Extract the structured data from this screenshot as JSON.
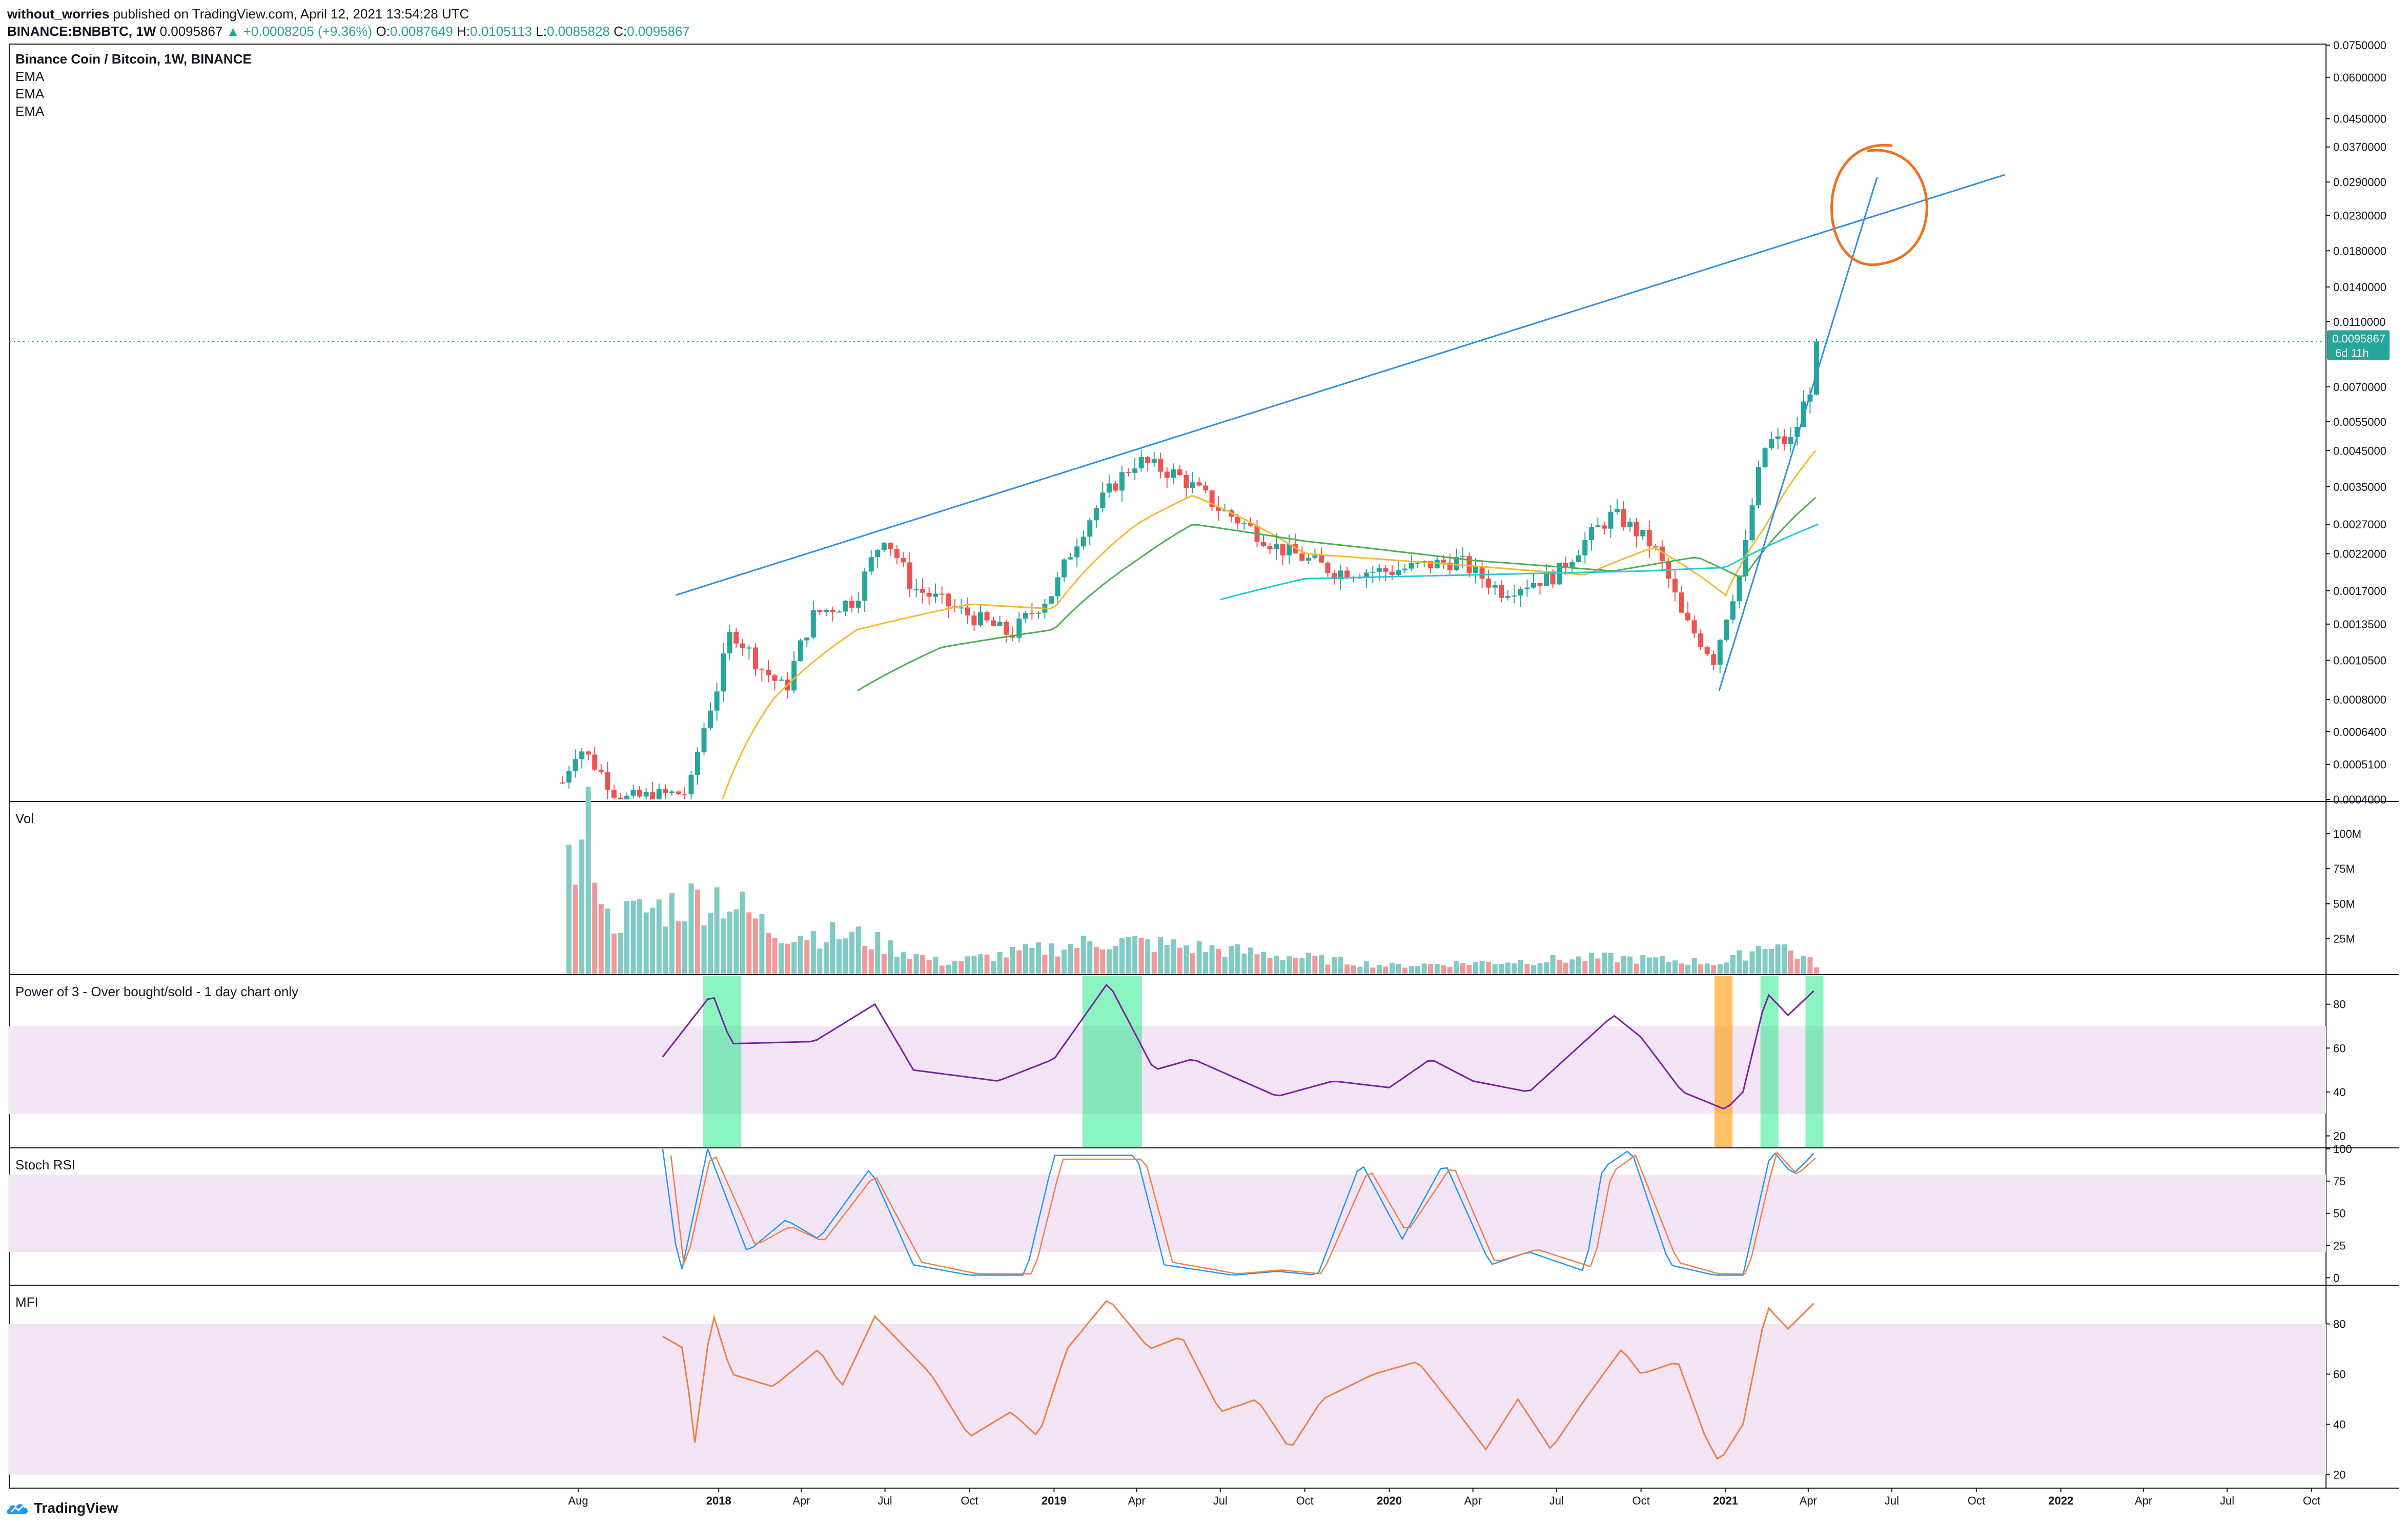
{
  "header": {
    "author": "without_worries",
    "published_text": "published on TradingView.com, April 12, 2021 13:54:28 UTC",
    "symbol": "BINANCE:BNBBTC, 1W",
    "last": "0.0095867",
    "change": "▲ +0.0008205 (+9.36%)",
    "o_label": "O:",
    "o_value": "0.0087649",
    "h_label": "H:",
    "h_value": "0.0105113",
    "l_label": "L:",
    "l_value": "0.0085828",
    "c_label": "C:",
    "c_value": "0.0095867"
  },
  "main_pane": {
    "title": "Binance Coin / Bitcoin, 1W, BINANCE",
    "legend": [
      "EMA",
      "EMA",
      "EMA"
    ],
    "price_tag": "0.0095867",
    "countdown": "6d 11h",
    "y_ticks": [
      "0.0750000",
      "0.0600000",
      "0.0450000",
      "0.0370000",
      "0.0290000",
      "0.0230000",
      "0.0180000",
      "0.0140000",
      "0.0110000",
      "0.0070000",
      "0.0055000",
      "0.0045000",
      "0.0035000",
      "0.0027000",
      "0.0022000",
      "0.0017000",
      "0.0013500",
      "0.0010500",
      "0.0008000",
      "0.0006400",
      "0.0005100",
      "0.0004000"
    ]
  },
  "vol_pane": {
    "title": "Vol",
    "y_ticks": [
      "100M",
      "75M",
      "50M",
      "25M"
    ]
  },
  "power_pane": {
    "title": "Power of 3 - Over bought/sold - 1 day chart only",
    "y_ticks": [
      "80",
      "60",
      "40",
      "20"
    ]
  },
  "stoch_pane": {
    "title": "Stoch RSI",
    "y_ticks": [
      "100",
      "75",
      "50",
      "25",
      "0"
    ]
  },
  "mfi_pane": {
    "title": "MFI",
    "y_ticks": [
      "80",
      "60",
      "40",
      "20"
    ]
  },
  "x_axis": {
    "labels": [
      "Aug",
      "2018",
      "Apr",
      "Jul",
      "Oct",
      "2019",
      "Apr",
      "Jul",
      "Oct",
      "2020",
      "Apr",
      "Jul",
      "Oct",
      "2021",
      "Apr",
      "Jul",
      "Oct",
      "2022",
      "Apr",
      "Jul",
      "Oct"
    ],
    "year_labels": [
      "2018",
      "2019",
      "2020",
      "2021",
      "2022"
    ]
  },
  "footer": {
    "brand": "TradingView"
  },
  "colors": {
    "up": "#26a69a",
    "down": "#ef5350",
    "ema_fast": "#f5b82e",
    "ema_mid": "#4caf50",
    "ema_slow": "#26c6da",
    "trendline": "#2f8fe0",
    "circle": "#f07020",
    "power_line": "#7b1fa2",
    "band": "#f3e5f5",
    "stoch_k": "#2196f3",
    "stoch_d": "#f57c44",
    "mfi": "#f57c44",
    "ob_green": "#00e676",
    "os_orange": "#ff9800"
  },
  "chart_data": [
    {
      "type": "candlestick",
      "title": "Binance Coin / Bitcoin, 1W, BINANCE",
      "y_scale": "log",
      "ylim": [
        0.0004,
        0.075
      ],
      "x_range": [
        "2017-07-01",
        "2022-11-01"
      ],
      "last_price": 0.0095867,
      "ohlc_anchors": [
        {
          "date": "2017-07-15",
          "close": 0.00045
        },
        {
          "date": "2017-08-01",
          "close": 0.00058
        },
        {
          "date": "2017-09-15",
          "close": 0.0004
        },
        {
          "date": "2017-11-30",
          "close": 0.00042
        },
        {
          "date": "2018-01-01",
          "close": 0.0009
        },
        {
          "date": "2018-01-15",
          "close": 0.0013
        },
        {
          "date": "2018-02-15",
          "close": 0.001
        },
        {
          "date": "2018-03-15",
          "close": 0.00085
        },
        {
          "date": "2018-04-15",
          "close": 0.00145
        },
        {
          "date": "2018-05-30",
          "close": 0.0016
        },
        {
          "date": "2018-06-30",
          "close": 0.0025
        },
        {
          "date": "2018-07-30",
          "close": 0.00175
        },
        {
          "date": "2018-09-15",
          "close": 0.0015
        },
        {
          "date": "2018-11-15",
          "close": 0.00125
        },
        {
          "date": "2019-01-01",
          "close": 0.0017
        },
        {
          "date": "2019-02-15",
          "close": 0.003
        },
        {
          "date": "2019-04-01",
          "close": 0.0042
        },
        {
          "date": "2019-05-15",
          "close": 0.0038
        },
        {
          "date": "2019-06-30",
          "close": 0.003
        },
        {
          "date": "2019-09-01",
          "close": 0.0023
        },
        {
          "date": "2019-11-01",
          "close": 0.00195
        },
        {
          "date": "2020-01-01",
          "close": 0.00195
        },
        {
          "date": "2020-03-15",
          "close": 0.0021
        },
        {
          "date": "2020-05-01",
          "close": 0.0017
        },
        {
          "date": "2020-07-01",
          "close": 0.0019
        },
        {
          "date": "2020-09-01",
          "close": 0.0029
        },
        {
          "date": "2020-10-15",
          "close": 0.0023
        },
        {
          "date": "2020-11-15",
          "close": 0.0014
        },
        {
          "date": "2020-12-20",
          "close": 0.00105
        },
        {
          "date": "2021-01-20",
          "close": 0.002
        },
        {
          "date": "2021-02-15",
          "close": 0.0048
        },
        {
          "date": "2021-03-15",
          "close": 0.0048
        },
        {
          "date": "2021-04-05",
          "close": 0.0072
        },
        {
          "date": "2021-04-12",
          "close": 0.0095867
        }
      ],
      "ema_fast": [
        [
          "2018-01-05",
          0.0004
        ],
        [
          "2018-03-01",
          0.0008
        ],
        [
          "2018-06-01",
          0.0013
        ],
        [
          "2018-10-01",
          0.00155
        ],
        [
          "2019-01-01",
          0.0015
        ],
        [
          "2019-04-01",
          0.0027
        ],
        [
          "2019-06-01",
          0.0033
        ],
        [
          "2019-10-01",
          0.0022
        ],
        [
          "2020-03-01",
          0.00205
        ],
        [
          "2020-08-01",
          0.0019
        ],
        [
          "2020-10-15",
          0.0023
        ],
        [
          "2021-01-01",
          0.00165
        ],
        [
          "2021-02-15",
          0.0027
        ],
        [
          "2021-04-12",
          0.0046
        ]
      ],
      "ema_mid": [
        [
          "2018-06-01",
          0.00085
        ],
        [
          "2018-09-01",
          0.00115
        ],
        [
          "2019-01-01",
          0.0013
        ],
        [
          "2019-04-01",
          0.0021
        ],
        [
          "2019-06-01",
          0.0027
        ],
        [
          "2019-10-01",
          0.0024
        ],
        [
          "2020-04-01",
          0.0021
        ],
        [
          "2020-09-01",
          0.00195
        ],
        [
          "2020-12-01",
          0.00215
        ],
        [
          "2021-01-20",
          0.00185
        ],
        [
          "2021-04-12",
          0.0033
        ]
      ],
      "ema_slow": [
        [
          "2019-07-01",
          0.0016
        ],
        [
          "2019-10-01",
          0.00185
        ],
        [
          "2020-04-01",
          0.0019
        ],
        [
          "2020-10-01",
          0.00195
        ],
        [
          "2021-01-01",
          0.002
        ],
        [
          "2021-04-12",
          0.0027
        ]
      ],
      "trendlines": [
        {
          "from": [
            "2017-11-15",
            0.00165
          ],
          "to": [
            "2021-11-01",
            0.0305
          ]
        },
        {
          "from": [
            "2020-12-25",
            0.00085
          ],
          "to": [
            "2021-06-15",
            0.03
          ]
        }
      ],
      "annotation": "hand-drawn circle around trendline intersection"
    },
    {
      "type": "bar",
      "title": "Vol",
      "ylim": [
        0,
        115000000
      ],
      "anchors": [
        [
          "2017-08-01",
          80000000
        ],
        [
          "2017-08-15",
          115000000
        ],
        [
          "2017-09-01",
          40000000
        ],
        [
          "2018-01-01",
          60000000
        ],
        [
          "2018-03-01",
          32000000
        ],
        [
          "2018-06-01",
          28000000
        ],
        [
          "2018-09-01",
          8000000
        ],
        [
          "2019-03-01",
          25000000
        ],
        [
          "2019-06-01",
          20000000
        ],
        [
          "2020-01-01",
          6000000
        ],
        [
          "2020-09-01",
          12000000
        ],
        [
          "2021-01-01",
          8000000
        ],
        [
          "2021-02-20",
          25000000
        ],
        [
          "2021-04-12",
          6000000
        ]
      ]
    },
    {
      "type": "line",
      "title": "Power of 3 - Over bought/sold - 1 day chart only",
      "ylim": [
        15,
        93
      ],
      "bands": [
        30,
        70
      ],
      "anchors": [
        [
          "2017-11-01",
          56
        ],
        [
          "2017-12-25",
          85
        ],
        [
          "2018-01-15",
          62
        ],
        [
          "2018-04-15",
          63
        ],
        [
          "2018-06-20",
          80
        ],
        [
          "2018-08-01",
          50
        ],
        [
          "2018-11-01",
          45
        ],
        [
          "2019-01-01",
          55
        ],
        [
          "2019-03-01",
          90
        ],
        [
          "2019-04-20",
          50
        ],
        [
          "2019-06-01",
          55
        ],
        [
          "2019-09-01",
          38
        ],
        [
          "2019-11-01",
          45
        ],
        [
          "2020-01-01",
          42
        ],
        [
          "2020-02-15",
          55
        ],
        [
          "2020-04-01",
          45
        ],
        [
          "2020-06-01",
          40
        ],
        [
          "2020-09-01",
          75
        ],
        [
          "2020-10-01",
          65
        ],
        [
          "2020-11-15",
          40
        ],
        [
          "2021-01-01",
          32
        ],
        [
          "2021-01-20",
          40
        ],
        [
          "2021-02-15",
          85
        ],
        [
          "2021-03-10",
          75
        ],
        [
          "2021-04-12",
          88
        ]
      ],
      "ob_zones": [
        [
          "2017-12-15",
          "2018-01-20"
        ],
        [
          "2019-02-01",
          "2019-04-01"
        ],
        [
          "2021-02-08",
          "2021-02-22"
        ],
        [
          "2021-03-29",
          "2021-04-12"
        ]
      ],
      "os_zones": [
        [
          "2020-12-20",
          "2021-01-03"
        ]
      ]
    },
    {
      "type": "line",
      "title": "Stoch RSI",
      "ylim": [
        -5,
        100
      ],
      "bands": [
        20,
        80
      ],
      "series": [
        {
          "name": "K",
          "anchors": [
            [
              "2017-11-01",
              100
            ],
            [
              "2017-11-20",
              0
            ],
            [
              "2017-12-20",
              100
            ],
            [
              "2018-02-01",
              20
            ],
            [
              "2018-03-15",
              45
            ],
            [
              "2018-04-20",
              30
            ],
            [
              "2018-06-15",
              85
            ],
            [
              "2018-08-01",
              10
            ],
            [
              "2018-10-01",
              2
            ],
            [
              "2018-12-01",
              2
            ],
            [
              "2019-01-01",
              95
            ],
            [
              "2019-04-01",
              95
            ],
            [
              "2019-05-01",
              10
            ],
            [
              "2019-07-15",
              2
            ],
            [
              "2019-09-01",
              5
            ],
            [
              "2019-10-15",
              2
            ],
            [
              "2019-12-01",
              90
            ],
            [
              "2020-01-15",
              30
            ],
            [
              "2020-03-01",
              90
            ],
            [
              "2020-04-20",
              10
            ],
            [
              "2020-06-01",
              20
            ],
            [
              "2020-08-01",
              5
            ],
            [
              "2020-08-20",
              85
            ],
            [
              "2020-09-20",
              100
            ],
            [
              "2020-11-01",
              10
            ],
            [
              "2020-12-20",
              2
            ],
            [
              "2021-01-20",
              2
            ],
            [
              "2021-02-20",
              100
            ],
            [
              "2021-03-15",
              80
            ],
            [
              "2021-04-12",
              100
            ]
          ]
        },
        {
          "name": "D",
          "anchors": [
            [
              "2017-11-10",
              95
            ],
            [
              "2017-11-25",
              5
            ],
            [
              "2017-12-25",
              100
            ],
            [
              "2018-02-10",
              25
            ],
            [
              "2018-03-20",
              40
            ],
            [
              "2018-04-25",
              28
            ],
            [
              "2018-06-20",
              80
            ],
            [
              "2018-08-10",
              12
            ],
            [
              "2018-10-10",
              3
            ],
            [
              "2018-12-10",
              3
            ],
            [
              "2019-01-10",
              92
            ],
            [
              "2019-04-10",
              92
            ],
            [
              "2019-05-10",
              12
            ],
            [
              "2019-07-20",
              3
            ],
            [
              "2019-09-05",
              6
            ],
            [
              "2019-10-20",
              3
            ],
            [
              "2019-12-10",
              85
            ],
            [
              "2020-01-20",
              35
            ],
            [
              "2020-03-10",
              88
            ],
            [
              "2020-04-25",
              12
            ],
            [
              "2020-06-10",
              22
            ],
            [
              "2020-08-10",
              8
            ],
            [
              "2020-08-30",
              82
            ],
            [
              "2020-09-25",
              95
            ],
            [
              "2020-11-10",
              12
            ],
            [
              "2020-12-25",
              3
            ],
            [
              "2021-01-25",
              3
            ],
            [
              "2021-02-25",
              98
            ],
            [
              "2021-03-20",
              80
            ],
            [
              "2021-04-12",
              95
            ]
          ]
        }
      ]
    },
    {
      "type": "line",
      "title": "MFI",
      "ylim": [
        15,
        95
      ],
      "bands": [
        20,
        80
      ],
      "anchors": [
        [
          "2017-11-01",
          75
        ],
        [
          "2017-11-25",
          70
        ],
        [
          "2017-12-05",
          30
        ],
        [
          "2017-12-25",
          85
        ],
        [
          "2018-01-15",
          60
        ],
        [
          "2018-03-01",
          55
        ],
        [
          "2018-04-20",
          70
        ],
        [
          "2018-05-15",
          55
        ],
        [
          "2018-06-20",
          83
        ],
        [
          "2018-08-20",
          60
        ],
        [
          "2018-10-01",
          35
        ],
        [
          "2018-11-15",
          45
        ],
        [
          "2018-12-15",
          35
        ],
        [
          "2019-01-15",
          70
        ],
        [
          "2019-03-01",
          90
        ],
        [
          "2019-04-15",
          70
        ],
        [
          "2019-05-20",
          75
        ],
        [
          "2019-07-01",
          45
        ],
        [
          "2019-08-10",
          50
        ],
        [
          "2019-09-15",
          30
        ],
        [
          "2019-10-20",
          50
        ],
        [
          "2019-12-15",
          60
        ],
        [
          "2020-02-01",
          65
        ],
        [
          "2020-03-15",
          45
        ],
        [
          "2020-04-15",
          30
        ],
        [
          "2020-05-20",
          50
        ],
        [
          "2020-06-25",
          30
        ],
        [
          "2020-08-01",
          50
        ],
        [
          "2020-09-10",
          70
        ],
        [
          "2020-10-01",
          60
        ],
        [
          "2020-11-10",
          65
        ],
        [
          "2020-12-10",
          35
        ],
        [
          "2020-12-25",
          25
        ],
        [
          "2021-01-20",
          40
        ],
        [
          "2021-02-15",
          87
        ],
        [
          "2021-03-10",
          78
        ],
        [
          "2021-04-12",
          90
        ]
      ]
    }
  ]
}
